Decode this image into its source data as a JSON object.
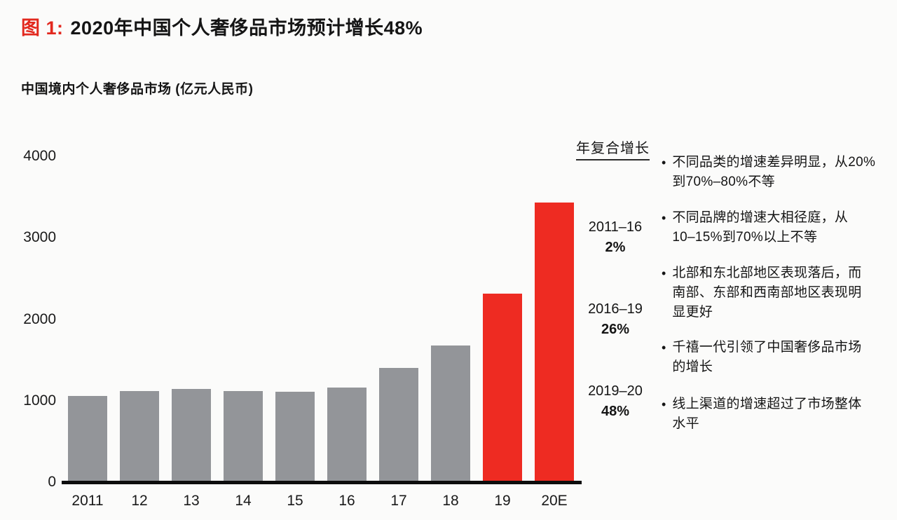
{
  "figure": {
    "label_icon": "图",
    "number": "1:",
    "title": "2020年中国个人奢侈品市场预计增长48%"
  },
  "subtitle": "中国境内个人奢侈品市场 (亿元人民币)",
  "cagr": {
    "header": "年复合增长",
    "entries": [
      {
        "period": "2011–16",
        "value": "2%"
      },
      {
        "period": "2016–19",
        "value": "26%"
      },
      {
        "period": "2019–20",
        "value": "48%"
      }
    ]
  },
  "bullet_char": "•",
  "bullets": [
    "不同品类的增速差异明显，从20%\n到70%–80%不等",
    "不同品牌的增速大相径庭，从\n10–15%到70%以上不等",
    "北部和东北部地区表现落后，而\n南部、东部和西南部地区表现明\n显更好",
    "千禧一代引领了中国奢侈品市场\n的增长",
    "线上渠道的增速超过了市场整体\n水平"
  ],
  "chart_data": {
    "type": "bar",
    "title": "中国境内个人奢侈品市场 (亿元人民币)",
    "categories": [
      "2011",
      "12",
      "13",
      "14",
      "15",
      "16",
      "17",
      "18",
      "19",
      "20E"
    ],
    "values": [
      1060,
      1120,
      1140,
      1120,
      1110,
      1160,
      1400,
      1680,
      2310,
      3430
    ],
    "xlabel": "",
    "ylabel": "亿元人民币",
    "ylim": [
      0,
      4000
    ],
    "yticks": [
      0,
      1000,
      2000,
      3000,
      4000
    ],
    "grid": false,
    "legend": false,
    "highlight_categories": [
      "19",
      "20E"
    ],
    "colors": {
      "bar": "#939599",
      "highlight": "#ee2b22",
      "axis": "#0d0d0d",
      "background": "#fbfbfa"
    }
  }
}
